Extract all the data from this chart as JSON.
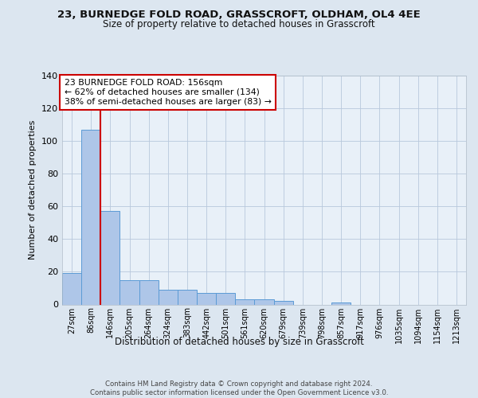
{
  "title1": "23, BURNEDGE FOLD ROAD, GRASSCROFT, OLDHAM, OL4 4EE",
  "title2": "Size of property relative to detached houses in Grasscroft",
  "xlabel": "Distribution of detached houses by size in Grasscroft",
  "ylabel": "Number of detached properties",
  "bin_labels": [
    "27sqm",
    "86sqm",
    "146sqm",
    "205sqm",
    "264sqm",
    "324sqm",
    "383sqm",
    "442sqm",
    "501sqm",
    "561sqm",
    "620sqm",
    "679sqm",
    "739sqm",
    "798sqm",
    "857sqm",
    "917sqm",
    "976sqm",
    "1035sqm",
    "1094sqm",
    "1154sqm",
    "1213sqm"
  ],
  "bar_heights": [
    19,
    107,
    57,
    15,
    15,
    9,
    9,
    7,
    7,
    3,
    3,
    2,
    0,
    0,
    1,
    0,
    0,
    0,
    0,
    0,
    0
  ],
  "bar_color": "#aec6e8",
  "bar_edge_color": "#5b9bd5",
  "vline_x_index": 2,
  "vline_color": "#cc0000",
  "annotation_text": "23 BURNEDGE FOLD ROAD: 156sqm\n← 62% of detached houses are smaller (134)\n38% of semi-detached houses are larger (83) →",
  "annotation_box_color": "#ffffff",
  "annotation_box_edge": "#cc0000",
  "ylim": [
    0,
    140
  ],
  "yticks": [
    0,
    20,
    40,
    60,
    80,
    100,
    120,
    140
  ],
  "footer": "Contains HM Land Registry data © Crown copyright and database right 2024.\nContains public sector information licensed under the Open Government Licence v3.0.",
  "bg_color": "#dce6f0",
  "plot_bg_color": "#e8f0f8"
}
